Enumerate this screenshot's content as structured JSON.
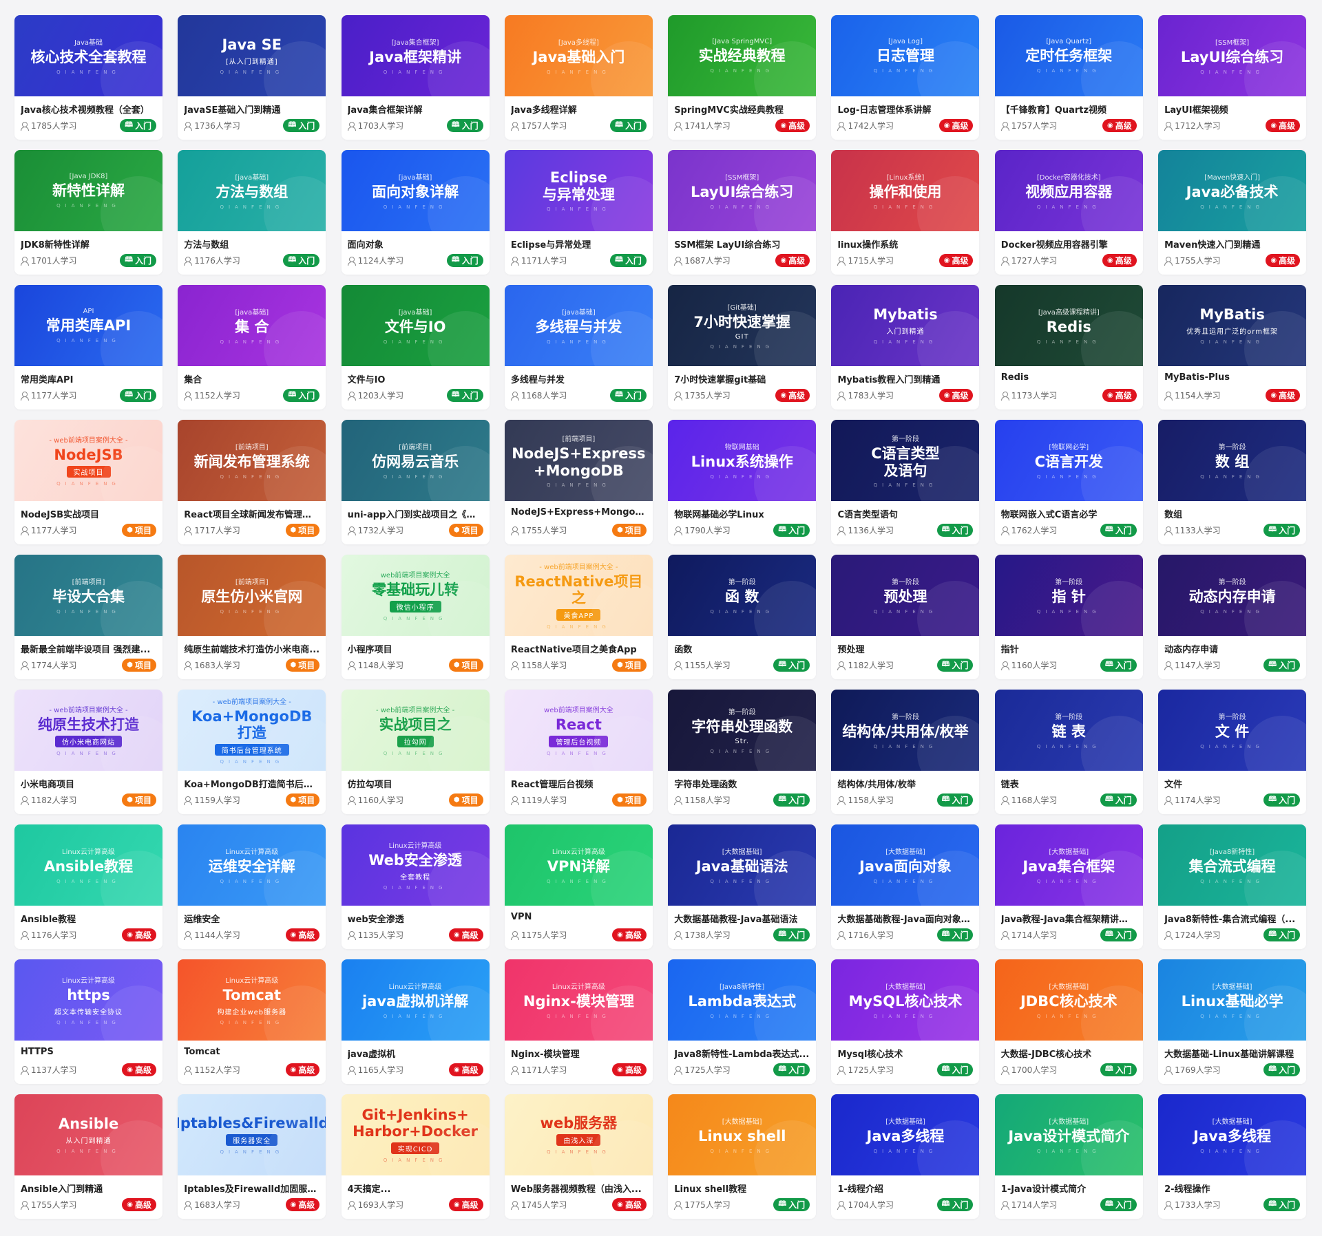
{
  "brand_text": "QIANFENG",
  "levels": {
    "入门": {
      "color": "#129a48",
      "icon": "book-icon",
      "glyph": "🕮"
    },
    "高级": {
      "color": "#e0141f",
      "icon": "compass-icon",
      "glyph": "◉"
    },
    "项目": {
      "color": "#f57a12",
      "icon": "cube-icon",
      "glyph": "⬢"
    }
  },
  "cards": [
    {
      "tag": "Java基础",
      "main": "核心技术全套教程",
      "sub": "",
      "title": "Java核心技术视频教程（全套）",
      "learners": "1785人学习",
      "level": "入门",
      "bg": "#2b3cc6",
      "bg2": "#3a2fd4"
    },
    {
      "tag": "",
      "main": "Java SE",
      "sub": "[从入门到精通]",
      "title": "JavaSE基础入门到精通",
      "learners": "1736人学习",
      "level": "入门",
      "bg": "#22379a",
      "bg2": "#2a43b0"
    },
    {
      "tag": "[Java集合框架]",
      "main": "Java框架精讲",
      "sub": "",
      "title": "Java集合框架详解",
      "learners": "1703人学习",
      "level": "入门",
      "bg": "#4a1fc8",
      "bg2": "#6a24d6"
    },
    {
      "tag": "[Java多线程]",
      "main": "Java基础入门",
      "sub": "",
      "title": "Java多线程详解",
      "learners": "1757人学习",
      "level": "入门",
      "bg": "#f77a22",
      "bg2": "#f99a3a"
    },
    {
      "tag": "[Java SpringMVC]",
      "main": "实战经典教程",
      "sub": "",
      "title": "SpringMVC实战经典教程",
      "learners": "1741人学习",
      "level": "高级",
      "bg": "#1f9a2a",
      "bg2": "#3ab83a"
    },
    {
      "tag": "[Java Log]",
      "main": "日志管理",
      "sub": "",
      "title": "Log-日志管理体系讲解",
      "learners": "1742人学习",
      "level": "高级",
      "bg": "#1a62ea",
      "bg2": "#2a82f6"
    },
    {
      "tag": "[Java Quartz]",
      "main": "定时任务框架",
      "sub": "",
      "title": "【千锋教育】Quartz视频",
      "learners": "1757人学习",
      "level": "高级",
      "bg": "#1a5ae6",
      "bg2": "#2a7af4"
    },
    {
      "tag": "[SSM框架]",
      "main": "LayUI综合练习",
      "sub": "",
      "title": "LayUI框架视频",
      "learners": "1712人学习",
      "level": "高级",
      "bg": "#6a24d0",
      "bg2": "#8e34e0"
    },
    {
      "tag": "[Java JDK8]",
      "main": "新特性详解",
      "sub": "",
      "title": "JDK8新特性详解",
      "learners": "1701人学习",
      "level": "入门",
      "bg": "#1a8e36",
      "bg2": "#2aa844"
    },
    {
      "tag": "[java基础]",
      "main": "方法与数组",
      "sub": "",
      "title": "方法与数组",
      "learners": "1176人学习",
      "level": "入门",
      "bg": "#14a09a",
      "bg2": "#2ab0a8"
    },
    {
      "tag": "[java基础]",
      "main": "面向对象详解",
      "sub": "",
      "title": "面向对象",
      "learners": "1124人学习",
      "level": "入门",
      "bg": "#1a56ee",
      "bg2": "#2a70f4"
    },
    {
      "tag": "",
      "main": "Eclipse\n与异常处理",
      "sub": "",
      "title": "Eclipse与异常处理",
      "learners": "1171人学习",
      "level": "入门",
      "bg": "#5a3ae0",
      "bg2": "#8a3ae0"
    },
    {
      "tag": "[SSM框架]",
      "main": "LayUI综合练习",
      "sub": "",
      "title": "SSM框架 LayUI综合练习",
      "learners": "1687人学习",
      "level": "高级",
      "bg": "#7a34cc",
      "bg2": "#9a44d8"
    },
    {
      "tag": "[Linux系统]",
      "main": "操作和使用",
      "sub": "",
      "title": "linux操作系统",
      "learners": "1715人学习",
      "level": "高级",
      "bg": "#c8324a",
      "bg2": "#e04a4a"
    },
    {
      "tag": "[Docker容器化技术]",
      "main": "视频应用容器",
      "sub": "",
      "title": "Docker视频应用容器引擎",
      "learners": "1727人学习",
      "level": "高级",
      "bg": "#5a24c8",
      "bg2": "#7a34d8"
    },
    {
      "tag": "[Maven快速入门]",
      "main": "Java必备技术",
      "sub": "",
      "title": "Maven快速入门到精通",
      "learners": "1755人学习",
      "level": "高级",
      "bg": "#13839a",
      "bg2": "#1aa0a0"
    },
    {
      "tag": "API",
      "main": "常用类库API",
      "sub": "",
      "title": "常用类库API",
      "learners": "1177人学习",
      "level": "入门",
      "bg": "#1a46dc",
      "bg2": "#2a6af0"
    },
    {
      "tag": "[java基础]",
      "main": "集 合",
      "sub": "",
      "title": "集合",
      "learners": "1152人学习",
      "level": "入门",
      "bg": "#8a24d0",
      "bg2": "#a834e0"
    },
    {
      "tag": "[java基础]",
      "main": "文件与IO",
      "sub": "",
      "title": "文件与IO",
      "learners": "1203人学习",
      "level": "入门",
      "bg": "#148a36",
      "bg2": "#1aa040"
    },
    {
      "tag": "[java基础]",
      "main": "多线程与并发",
      "sub": "",
      "title": "多线程与并发",
      "learners": "1168人学习",
      "level": "入门",
      "bg": "#2a66ee",
      "bg2": "#3a80f6"
    },
    {
      "tag": "[Git基础]",
      "main": "7小时快速掌握",
      "sub": "GIT",
      "title": "7小时快速掌握git基础",
      "learners": "1735人学习",
      "level": "高级",
      "bg": "#162544",
      "bg2": "#23355a"
    },
    {
      "tag": "",
      "main": "Mybatis",
      "sub": "入门到精通",
      "title": "Mybatis教程入门到精通",
      "learners": "1783人学习",
      "level": "高级",
      "bg": "#4a24b4",
      "bg2": "#6a34c8"
    },
    {
      "tag": "[Java高级课程精讲]",
      "main": "Redis",
      "sub": "",
      "title": "Redis",
      "learners": "1173人学习",
      "level": "高级",
      "bg": "#15382a",
      "bg2": "#1f4a36"
    },
    {
      "tag": "",
      "main": "MyBatis",
      "sub": "优秀且运用广泛的orm框架",
      "title": "MyBatis-Plus",
      "learners": "1154人学习",
      "level": "高级",
      "bg": "#17275e",
      "bg2": "#24367a"
    },
    {
      "tag": "- web前端项目案例大全 -",
      "main": "NodeJSB",
      "sub": "实战项目",
      "title": "NodeJSB实战项目",
      "learners": "1177人学习",
      "level": "项目",
      "bg": "#fde2dc",
      "bg2": "#fcd4cc",
      "fg": "#f0451c"
    },
    {
      "tag": "[前端项目]",
      "main": "新闻发布管理系统",
      "sub": "",
      "title": "React项目全球新闻发布管理系统",
      "learners": "1717人学习",
      "level": "项目",
      "bg": "#a8442c",
      "bg2": "#c4603a"
    },
    {
      "tag": "[前端项目]",
      "main": "仿网易云音乐",
      "sub": "",
      "title": "uni-app入门到实战项目之《仿...",
      "learners": "1732人学习",
      "level": "项目",
      "bg": "#22647a",
      "bg2": "#2e7a8a"
    },
    {
      "tag": "[前端项目]",
      "main": "NodeJS+Express\n+MongoDB",
      "sub": "",
      "title": "NodeJS+Express+MongoD...",
      "learners": "1755人学习",
      "level": "项目",
      "bg": "#333a55",
      "bg2": "#454a66"
    },
    {
      "tag": "物联网基础",
      "main": "Linux系统操作",
      "sub": "",
      "title": "物联网基础必学Linux",
      "learners": "1790人学习",
      "level": "入门",
      "bg": "#5a24ea",
      "bg2": "#7a34e6"
    },
    {
      "tag": "第一阶段",
      "main": "C语言类型\n及语句",
      "sub": "",
      "title": "C语言类型语句",
      "learners": "1136人学习",
      "level": "入门",
      "bg": "#121858",
      "bg2": "#1a246a"
    },
    {
      "tag": "[物联网必学]",
      "main": "C语言开发",
      "sub": "",
      "title": "物联网嵌入式C语言必学",
      "learners": "1762人学习",
      "level": "入门",
      "bg": "#2640ee",
      "bg2": "#3a5af6"
    },
    {
      "tag": "第一阶段",
      "main": "数 组",
      "sub": "",
      "title": "数组",
      "learners": "1133人学习",
      "level": "入门",
      "bg": "#171d66",
      "bg2": "#1e2c80"
    },
    {
      "tag": "[前端项目]",
      "main": "毕设大合集",
      "sub": "",
      "title": "最新最全前端毕设项目 强烈建...",
      "learners": "1774人学习",
      "level": "项目",
      "bg": "#267486",
      "bg2": "#338894"
    },
    {
      "tag": "[前端项目]",
      "main": "原生仿小米官网",
      "sub": "",
      "title": "纯原生前端技术打造仿小米电商...",
      "learners": "1683人学习",
      "level": "项目",
      "bg": "#b8562a",
      "bg2": "#d06a30"
    },
    {
      "tag": "web前端项目案例大全",
      "main": "零基础玩儿转",
      "sub": "微信小程序",
      "title": "小程序项目",
      "learners": "1148人学习",
      "level": "项目",
      "bg": "#e2f8e0",
      "bg2": "#d2f2d0",
      "fg": "#12a04a"
    },
    {
      "tag": "- web前端项目案例大全 -",
      "main": "ReactNative项目之",
      "sub": "美食APP",
      "title": "ReactNative项目之美食App",
      "learners": "1158人学习",
      "level": "项目",
      "bg": "#feead0",
      "bg2": "#fde0bc",
      "fg": "#f59a12"
    },
    {
      "tag": "第一阶段",
      "main": "函 数",
      "sub": "",
      "title": "函数",
      "learners": "1155人学习",
      "level": "入门",
      "bg": "#0f1a5e",
      "bg2": "#1a2a80"
    },
    {
      "tag": "第一阶段",
      "main": "预处理",
      "sub": "",
      "title": "预处理",
      "learners": "1182人学习",
      "level": "入门",
      "bg": "#2a1a78",
      "bg2": "#3a1a8a"
    },
    {
      "tag": "第一阶段",
      "main": "指 针",
      "sub": "",
      "title": "指针",
      "learners": "1160人学习",
      "level": "入门",
      "bg": "#261888",
      "bg2": "#4a1a8a"
    },
    {
      "tag": "第一阶段",
      "main": "动态内存申请",
      "sub": "",
      "title": "动态内存申请",
      "learners": "1147人学习",
      "level": "入门",
      "bg": "#261868",
      "bg2": "#3a1a7a"
    },
    {
      "tag": "- web前端项目案例大全 -",
      "main": "纯原生技术打造",
      "sub": "仿小米电商网站",
      "title": "小米电商项目",
      "learners": "1182人学习",
      "level": "项目",
      "bg": "#ede2fb",
      "bg2": "#e2d4f8",
      "fg": "#5a2ad0"
    },
    {
      "tag": "- web前端项目案例大全 -",
      "main": "Koa+MongoDB打造",
      "sub": "简书后台管理系统",
      "title": "Koa+MongoDB打造简书后台...",
      "learners": "1159人学习",
      "level": "项目",
      "bg": "#dcedfd",
      "bg2": "#cde4fb",
      "fg": "#1a6ae6"
    },
    {
      "tag": "- web前端项目案例大全 -",
      "main": "实战项目之",
      "sub": "拉勾网",
      "title": "仿拉勾项目",
      "learners": "1160人学习",
      "level": "项目",
      "bg": "#e4f8dc",
      "bg2": "#d6f2cc",
      "fg": "#1aa04a"
    },
    {
      "tag": "web前端项目案例大全",
      "main": "React",
      "sub": "管理后台视频",
      "title": "React管理后台视频",
      "learners": "1119人学习",
      "level": "项目",
      "bg": "#f2e6fb",
      "bg2": "#e8dafa",
      "fg": "#7a2ad8"
    },
    {
      "tag": "第一阶段",
      "main": "字符串处理函数",
      "sub": "Str.",
      "title": "字符串处理函数",
      "learners": "1158人学习",
      "level": "入门",
      "bg": "#17173a",
      "bg2": "#22224a"
    },
    {
      "tag": "第一阶段",
      "main": "结构体/共用体/枚举",
      "sub": "",
      "title": "结构体/共用体/枚举",
      "learners": "1158人学习",
      "level": "入门",
      "bg": "#0f1a58",
      "bg2": "#1a2a7a"
    },
    {
      "tag": "第一阶段",
      "main": "链 表",
      "sub": "",
      "title": "链表",
      "learners": "1168人学习",
      "level": "入门",
      "bg": "#1a2a98",
      "bg2": "#2a3ab0"
    },
    {
      "tag": "第一阶段",
      "main": "文 件",
      "sub": "",
      "title": "文件",
      "learners": "1174人学习",
      "level": "入门",
      "bg": "#1a28a0",
      "bg2": "#2a3ab8"
    },
    {
      "tag": "Linux云计算高级",
      "main": "Ansible教程",
      "sub": "",
      "title": "Ansible教程",
      "learners": "1176人学习",
      "level": "高级",
      "bg": "#1ec8a0",
      "bg2": "#34d8b0"
    },
    {
      "tag": "Linux云计算高级",
      "main": "运维安全详解",
      "sub": "",
      "title": "运维安全",
      "learners": "1144人学习",
      "level": "高级",
      "bg": "#2a84f0",
      "bg2": "#3a9af6"
    },
    {
      "tag": "Linux云计算高级",
      "main": "Web安全渗透",
      "sub": "全套教程",
      "title": "web安全渗透",
      "learners": "1135人学习",
      "level": "高级",
      "bg": "#5a34e0",
      "bg2": "#7a3ae4"
    },
    {
      "tag": "Linux云计算高级",
      "main": "VPN详解",
      "sub": "",
      "title": "VPN",
      "learners": "1175人学习",
      "level": "高级",
      "bg": "#1ec46a",
      "bg2": "#2ad47a"
    },
    {
      "tag": "[大数据基础]",
      "main": "Java基础语法",
      "sub": "",
      "title": "大数据基础教程-Java基础语法",
      "learners": "1738人学习",
      "level": "入门",
      "bg": "#1a2894",
      "bg2": "#2a3ab0"
    },
    {
      "tag": "[大数据基础]",
      "main": "Java面向对象",
      "sub": "",
      "title": "大数据基础教程-Java面向对象编程",
      "learners": "1716人学习",
      "level": "入门",
      "bg": "#1a56e0",
      "bg2": "#2a6af0"
    },
    {
      "tag": "[大数据基础]",
      "main": "Java集合框架",
      "sub": "",
      "title": "Java教程-Java集合框架精讲（...",
      "learners": "1714人学习",
      "level": "入门",
      "bg": "#6a24dc",
      "bg2": "#8a34e6"
    },
    {
      "tag": "[Java8新特性]",
      "main": "集合流式编程",
      "sub": "",
      "title": "Java8新特性-集合流式编程（...",
      "learners": "1724人学习",
      "level": "入门",
      "bg": "#14a088",
      "bg2": "#1ab49a"
    },
    {
      "tag": "Linux云计算高级",
      "main": "https",
      "sub": "超文本传输安全协议",
      "title": "HTTPS",
      "learners": "1137人学习",
      "level": "高级",
      "bg": "#5a58f0",
      "bg2": "#7a5af4"
    },
    {
      "tag": "Linux云计算高级",
      "main": "Tomcat",
      "sub": "构建企业web服务器",
      "title": "Tomcat",
      "learners": "1152人学习",
      "level": "高级",
      "bg": "#f5542a",
      "bg2": "#f7803a"
    },
    {
      "tag": "Linux云计算高级",
      "main": "java虚拟机详解",
      "sub": "",
      "title": "java虚拟机",
      "learners": "1165人学习",
      "level": "高级",
      "bg": "#1a80f0",
      "bg2": "#2aa0f6"
    },
    {
      "tag": "Linux云计算高级",
      "main": "Nginx-模块管理",
      "sub": "",
      "title": "Nginx-模块管理",
      "learners": "1171人学习",
      "level": "高级",
      "bg": "#f0346a",
      "bg2": "#f44a7a"
    },
    {
      "tag": "[Java8新特性]",
      "main": "Lambda表达式",
      "sub": "",
      "title": "Java8新特性-Lambda表达式...",
      "learners": "1725人学习",
      "level": "入门",
      "bg": "#1a66f0",
      "bg2": "#2a80f6"
    },
    {
      "tag": "[大数据基础]",
      "main": "MySQL核心技术",
      "sub": "",
      "title": "Mysql核心技术",
      "learners": "1725人学习",
      "level": "入门",
      "bg": "#7a26e0",
      "bg2": "#9a34e6"
    },
    {
      "tag": "[大数据基础]",
      "main": "JDBC核心技术",
      "sub": "",
      "title": "大数据-JDBC核心技术",
      "learners": "1700人学习",
      "level": "入门",
      "bg": "#f5641a",
      "bg2": "#f7802a"
    },
    {
      "tag": "[大数据基础]",
      "main": "Linux基础必学",
      "sub": "",
      "title": "大数据基础-Linux基础讲解课程",
      "learners": "1769人学习",
      "level": "入门",
      "bg": "#1a84e0",
      "bg2": "#2aa0ea"
    },
    {
      "tag": "",
      "main": "Ansible",
      "sub": "从入门到精通",
      "title": "Ansible入门到精通",
      "learners": "1755人学习",
      "level": "高级",
      "bg": "#dc4458",
      "bg2": "#e85a6a"
    },
    {
      "tag": "",
      "main": "Iptables&Firewalld",
      "sub": "服务器安全",
      "title": "Iptables及Firewalld加固服务...",
      "learners": "1683人学习",
      "level": "高级",
      "bg": "#d2e8fc",
      "bg2": "#c2dcfa",
      "fg": "#1a5ad0"
    },
    {
      "tag": "",
      "main": "Git+Jenkins+\nHarbor+Docker",
      "sub": "实现CICD",
      "title": "4天搞定...",
      "learners": "1693人学习",
      "level": "高级",
      "bg": "#fdf1c4",
      "bg2": "#fde8b0",
      "fg": "#e0341a"
    },
    {
      "tag": "",
      "main": "web服务器",
      "sub": "由浅入深",
      "title": "Web服务器视频教程（由浅入...",
      "learners": "1745人学习",
      "level": "高级",
      "bg": "#fdf2c8",
      "bg2": "#fde8b4",
      "fg": "#e0341a"
    },
    {
      "tag": "[大数据基础]",
      "main": "Linux shell",
      "sub": "",
      "title": "Linux shell教程",
      "learners": "1775人学习",
      "level": "入门",
      "bg": "#f5881a",
      "bg2": "#f7a02a"
    },
    {
      "tag": "[大数据基础]",
      "main": "Java多线程",
      "sub": "",
      "title": "1-线程介绍",
      "learners": "1704人学习",
      "level": "入门",
      "bg": "#1a28cc",
      "bg2": "#2a3ae0"
    },
    {
      "tag": "[大数据基础]",
      "main": "Java设计模式简介",
      "sub": "",
      "title": "1-Java设计模式简介",
      "learners": "1714人学习",
      "level": "入门",
      "bg": "#14a878",
      "bg2": "#2ac06a"
    },
    {
      "tag": "[大数据基础]",
      "main": "Java多线程",
      "sub": "",
      "title": "2-线程操作",
      "learners": "1733人学习",
      "level": "入门",
      "bg": "#1a28cc",
      "bg2": "#2a3ae0"
    }
  ]
}
